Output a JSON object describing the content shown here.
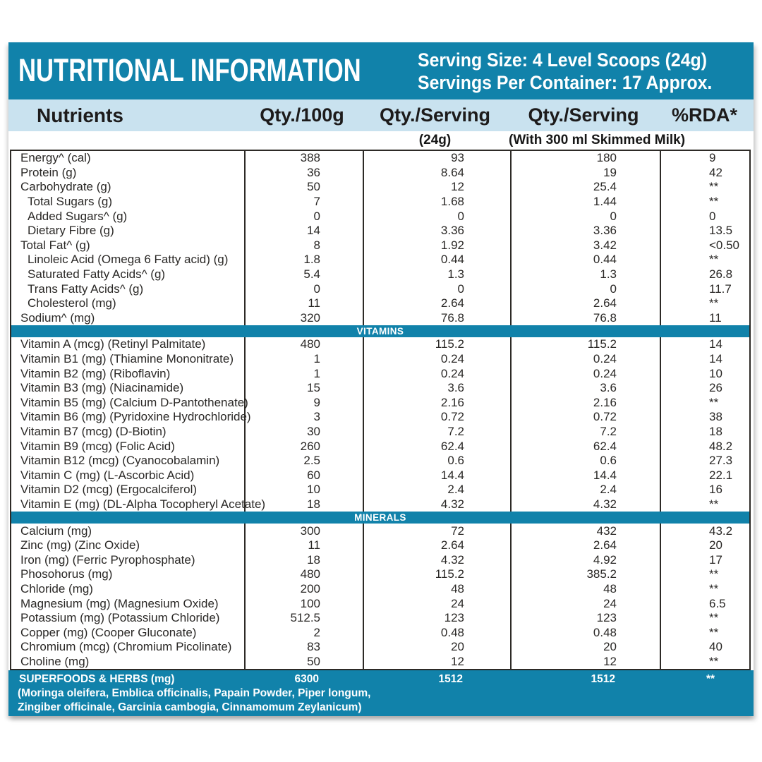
{
  "colors": {
    "teal": "#1182aa",
    "lightblue": "#c9e2ef",
    "border": "#2d2a26",
    "text": "#2a2826"
  },
  "title_band": {
    "title": "NUTRITIONAL INFORMATION",
    "serving_line1": "Serving Size: 4 Level Scoops (24g)",
    "serving_line2": "Servings Per Container: 17 Approx."
  },
  "column_headers": {
    "nutrients": "Nutrients",
    "qty_100g": "Qty./100g",
    "qty_serving": "Qty./Serving",
    "qty_serving_milk": "Qty./Serving",
    "rda": "%RDA*"
  },
  "sub_headers": {
    "serving": "(24g)",
    "serving_milk": "(With 300 ml Skimmed Milk)"
  },
  "table": {
    "sections": [
      {
        "band": null,
        "rows": [
          {
            "label": "Energy^ (cal)",
            "indent": false,
            "values": [
              "388",
              "93",
              "180",
              "9"
            ]
          },
          {
            "label": "Protein (g)",
            "indent": false,
            "values": [
              "36",
              "8.64",
              "19",
              "42"
            ]
          },
          {
            "label": "Carbohydrate (g)",
            "indent": false,
            "values": [
              "50",
              "12",
              "25.4",
              "**"
            ]
          },
          {
            "label": "Total Sugars (g)",
            "indent": true,
            "values": [
              "7",
              "1.68",
              "1.44",
              "**"
            ]
          },
          {
            "label": "Added Sugars^ (g)",
            "indent": true,
            "values": [
              "0",
              "0",
              "0",
              "0"
            ]
          },
          {
            "label": "Dietary Fibre (g)",
            "indent": true,
            "values": [
              "14",
              "3.36",
              "3.36",
              "13.5"
            ]
          },
          {
            "label": "Total Fat^ (g)",
            "indent": false,
            "values": [
              "8",
              "1.92",
              "3.42",
              "<0.50"
            ]
          },
          {
            "label": "Linoleic Acid (Omega 6 Fatty acid) (g)",
            "indent": true,
            "values": [
              "1.8",
              "0.44",
              "0.44",
              "**"
            ]
          },
          {
            "label": "Saturated Fatty Acids^ (g)",
            "indent": true,
            "values": [
              "5.4",
              "1.3",
              "1.3",
              "26.8"
            ]
          },
          {
            "label": "Trans Fatty Acids^ (g)",
            "indent": true,
            "values": [
              "0",
              "0",
              "0",
              "11.7"
            ]
          },
          {
            "label": "Cholesterol (mg)",
            "indent": true,
            "values": [
              "11",
              "2.64",
              "2.64",
              "**"
            ]
          },
          {
            "label": "Sodium^ (mg)",
            "indent": false,
            "values": [
              "320",
              "76.8",
              "76.8",
              "11"
            ]
          }
        ]
      },
      {
        "band": "VITAMINS",
        "rows": [
          {
            "label": "Vitamin A (mcg) (Retinyl Palmitate)",
            "indent": false,
            "values": [
              "480",
              "115.2",
              "115.2",
              "14"
            ]
          },
          {
            "label": "Vitamin B1 (mg) (Thiamine Mononitrate)",
            "indent": false,
            "values": [
              "1",
              "0.24",
              "0.24",
              "14"
            ]
          },
          {
            "label": "Vitamin B2 (mg) (Riboflavin)",
            "indent": false,
            "values": [
              "1",
              "0.24",
              "0.24",
              "10"
            ]
          },
          {
            "label": "Vitamin B3 (mg) (Niacinamide)",
            "indent": false,
            "values": [
              "15",
              "3.6",
              "3.6",
              "26"
            ]
          },
          {
            "label": "Vitamin B5 (mg) (Calcium D-Pantothenate)",
            "indent": false,
            "values": [
              "9",
              "2.16",
              "2.16",
              "**"
            ]
          },
          {
            "label": "Vitamin B6 (mg) (Pyridoxine Hydrochloride)",
            "indent": false,
            "values": [
              "3",
              "0.72",
              "0.72",
              "38"
            ]
          },
          {
            "label": "Vitamin B7 (mcg) (D-Biotin)",
            "indent": false,
            "values": [
              "30",
              "7.2",
              "7.2",
              "18"
            ]
          },
          {
            "label": "Vitamin B9 (mcg) (Folic Acid)",
            "indent": false,
            "values": [
              "260",
              "62.4",
              "62.4",
              "48.2"
            ]
          },
          {
            "label": "Vitamin B12 (mcg) (Cyanocobalamin)",
            "indent": false,
            "values": [
              "2.5",
              "0.6",
              "0.6",
              "27.3"
            ]
          },
          {
            "label": "Vitamin C (mg) (L-Ascorbic Acid)",
            "indent": false,
            "values": [
              "60",
              "14.4",
              "14.4",
              "22.1"
            ]
          },
          {
            "label": "Vitamin D2 (mcg) (Ergocalciferol)",
            "indent": false,
            "values": [
              "10",
              "2.4",
              "2.4",
              "16"
            ]
          },
          {
            "label": "Vitamin E (mg) (DL-Alpha Tocopheryl Acetate)",
            "indent": false,
            "values": [
              "18",
              "4.32",
              "4.32",
              "**"
            ]
          }
        ]
      },
      {
        "band": "MINERALS",
        "rows": [
          {
            "label": "Calcium (mg)",
            "indent": false,
            "values": [
              "300",
              "72",
              "432",
              "43.2"
            ]
          },
          {
            "label": "Zinc (mg) (Zinc Oxide)",
            "indent": false,
            "values": [
              "11",
              "2.64",
              "2.64",
              "20"
            ]
          },
          {
            "label": "Iron (mg) (Ferric Pyrophosphate)",
            "indent": false,
            "values": [
              "18",
              "4.32",
              "4.92",
              "17"
            ]
          },
          {
            "label": "Phosohorus (mg)",
            "indent": false,
            "values": [
              "480",
              "115.2",
              "385.2",
              "**"
            ]
          },
          {
            "label": "Chloride (mg)",
            "indent": false,
            "values": [
              "200",
              "48",
              "48",
              "**"
            ]
          },
          {
            "label": "Magnesium (mg) (Magnesium Oxide)",
            "indent": false,
            "values": [
              "100",
              "24",
              "24",
              "6.5"
            ]
          },
          {
            "label": "Potassium (mg) (Potassium Chloride)",
            "indent": false,
            "values": [
              "512.5",
              "123",
              "123",
              "**"
            ]
          },
          {
            "label": "Copper (mg) (Cooper Gluconate)",
            "indent": false,
            "values": [
              "2",
              "0.48",
              "0.48",
              "**"
            ]
          },
          {
            "label": "Chromium (mcg) (Chromium Picolinate)",
            "indent": false,
            "values": [
              "83",
              "20",
              "20",
              "40"
            ]
          },
          {
            "label": "Choline (mg)",
            "indent": false,
            "values": [
              "50",
              "12",
              "12",
              "**"
            ]
          }
        ]
      }
    ]
  },
  "superfoods": {
    "label": "SUPERFOODS & HERBS (mg)",
    "values": [
      "6300",
      "1512",
      "1512",
      "**"
    ],
    "note_line1": "(Moringa oleifera, Emblica officinalis, Papain Powder, Piper longum,",
    "note_line2": "Zingiber officinale, Garcinia cambogia, Cinnamomum Zeylanicum)"
  }
}
